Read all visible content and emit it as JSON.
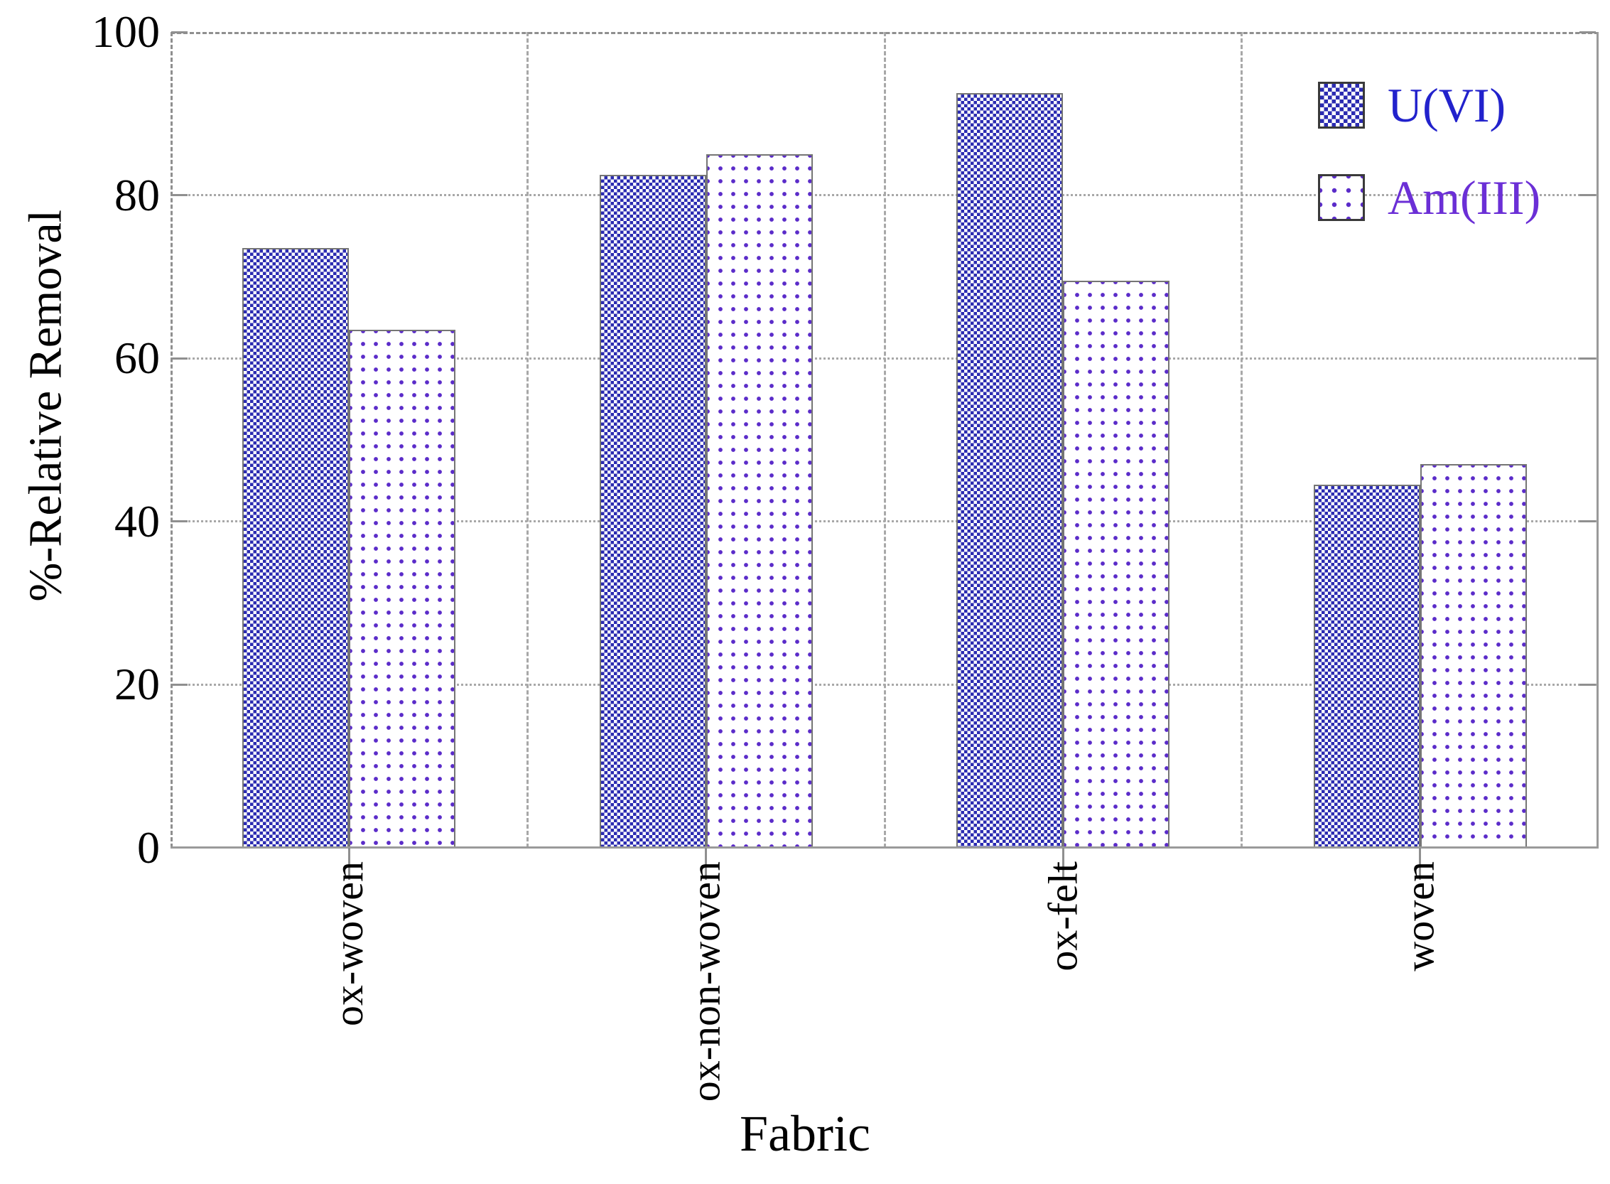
{
  "chart_data": {
    "type": "bar",
    "title": "",
    "xlabel": "Fabric",
    "ylabel": "%-Relative Removal",
    "categories": [
      "ox-woven",
      "ox-non-woven",
      "ox-felt",
      "woven"
    ],
    "series": [
      {
        "name": "U(VI)",
        "pattern": "checker",
        "pattern_color": "#2b2bb1",
        "label_color": "#2222cc",
        "values": [
          73.5,
          82.5,
          92.5,
          44.5
        ]
      },
      {
        "name": "Am(III)",
        "pattern": "dots",
        "pattern_color": "#5b2cc9",
        "label_color": "#6b2fd6",
        "values": [
          63.5,
          85,
          69.5,
          47
        ]
      }
    ],
    "ylim": [
      0,
      100
    ],
    "yticks": [
      0,
      20,
      40,
      60,
      80,
      100
    ],
    "grid": {
      "horizontal_style": "dotted",
      "vertical_style": "dashed-at-category-boundaries",
      "color": "#a8a8a8"
    },
    "frame": {
      "top_left_style": "dashed",
      "bottom_right_style": "solid",
      "color": "#8f8f8f"
    },
    "legend_position": "top-right-inside"
  }
}
